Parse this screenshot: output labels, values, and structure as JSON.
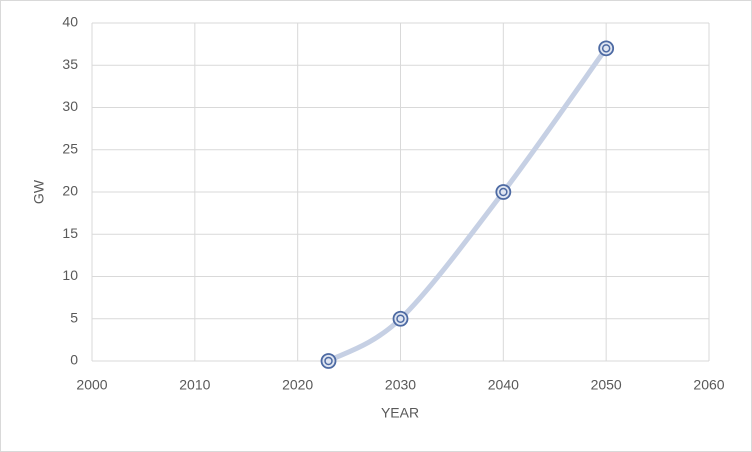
{
  "chart_data": {
    "type": "scatter",
    "x_label": "YEAR",
    "y_label": "GW",
    "x": [
      2023,
      2030,
      2040,
      2050
    ],
    "values": [
      0,
      5,
      20,
      37
    ],
    "line_color": "#c6d0e4",
    "marker_color": "#4d6aa3",
    "smooth": true,
    "xlim": [
      2000,
      2060
    ],
    "xticks": [
      2000,
      2010,
      2020,
      2030,
      2040,
      2050,
      2060
    ],
    "ylim": [
      0,
      40
    ],
    "yticks": [
      0,
      5,
      10,
      15,
      20,
      25,
      30,
      35,
      40
    ],
    "grid": true
  }
}
